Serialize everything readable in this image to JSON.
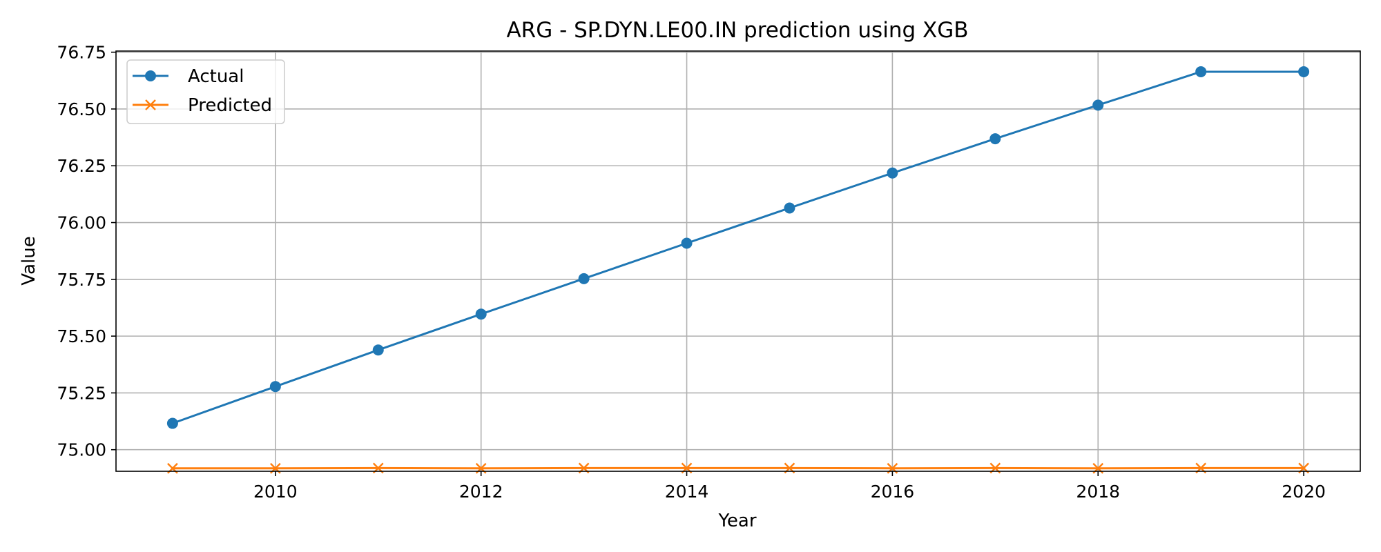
{
  "chart_data": {
    "type": "line",
    "title": "ARG - SP.DYN.LE00.IN prediction using XGB",
    "xlabel": "Year",
    "ylabel": "Value",
    "x": [
      2009,
      2010,
      2011,
      2012,
      2013,
      2014,
      2015,
      2016,
      2017,
      2018,
      2019,
      2020
    ],
    "xlim": [
      2008.45,
      2020.55
    ],
    "ylim": [
      74.905,
      76.755
    ],
    "xticks": [
      "2010",
      "2012",
      "2014",
      "2016",
      "2018",
      "2020"
    ],
    "yticks": [
      "75.00",
      "75.25",
      "75.50",
      "75.75",
      "76.00",
      "76.25",
      "76.50",
      "76.75"
    ],
    "grid": true,
    "legend_position": "upper left",
    "series": [
      {
        "name": "Actual",
        "color": "#1f77b4",
        "marker": "circle",
        "values": [
          75.116,
          75.278,
          75.439,
          75.597,
          75.753,
          75.909,
          76.064,
          76.218,
          76.369,
          76.517,
          76.664,
          76.664
        ]
      },
      {
        "name": "Predicted",
        "color": "#ff7f0e",
        "marker": "x",
        "values": [
          74.918,
          74.918,
          74.919,
          74.918,
          74.919,
          74.919,
          74.919,
          74.918,
          74.919,
          74.918,
          74.919,
          74.919
        ]
      }
    ]
  }
}
